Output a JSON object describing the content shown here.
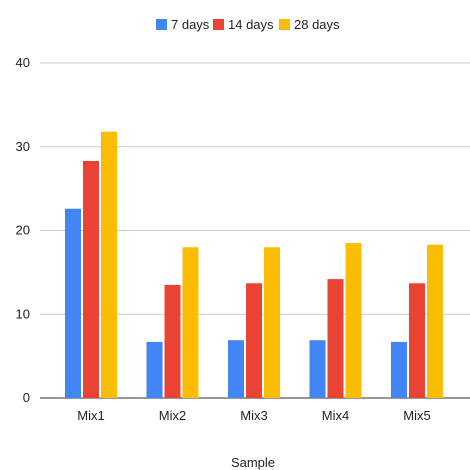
{
  "chart_data": {
    "type": "bar",
    "title": "",
    "xlabel": "Sample",
    "ylabel": "",
    "categories": [
      "Mix1",
      "Mix2",
      "Mix3",
      "Mix4",
      "Mix5"
    ],
    "series": [
      {
        "name": "7 days",
        "color": "#4285F4",
        "values": [
          22.6,
          6.7,
          6.9,
          6.9,
          6.7
        ]
      },
      {
        "name": "14 days",
        "color": "#EA4335",
        "values": [
          28.3,
          13.5,
          13.7,
          14.2,
          13.7
        ]
      },
      {
        "name": "28 days",
        "color": "#FBBC04",
        "values": [
          31.8,
          18.0,
          18.0,
          18.5,
          18.3
        ]
      }
    ],
    "ylim": [
      0,
      40
    ],
    "yticks": [
      0,
      10,
      20,
      30,
      40
    ],
    "grid": true,
    "legend_position": "top-center"
  }
}
